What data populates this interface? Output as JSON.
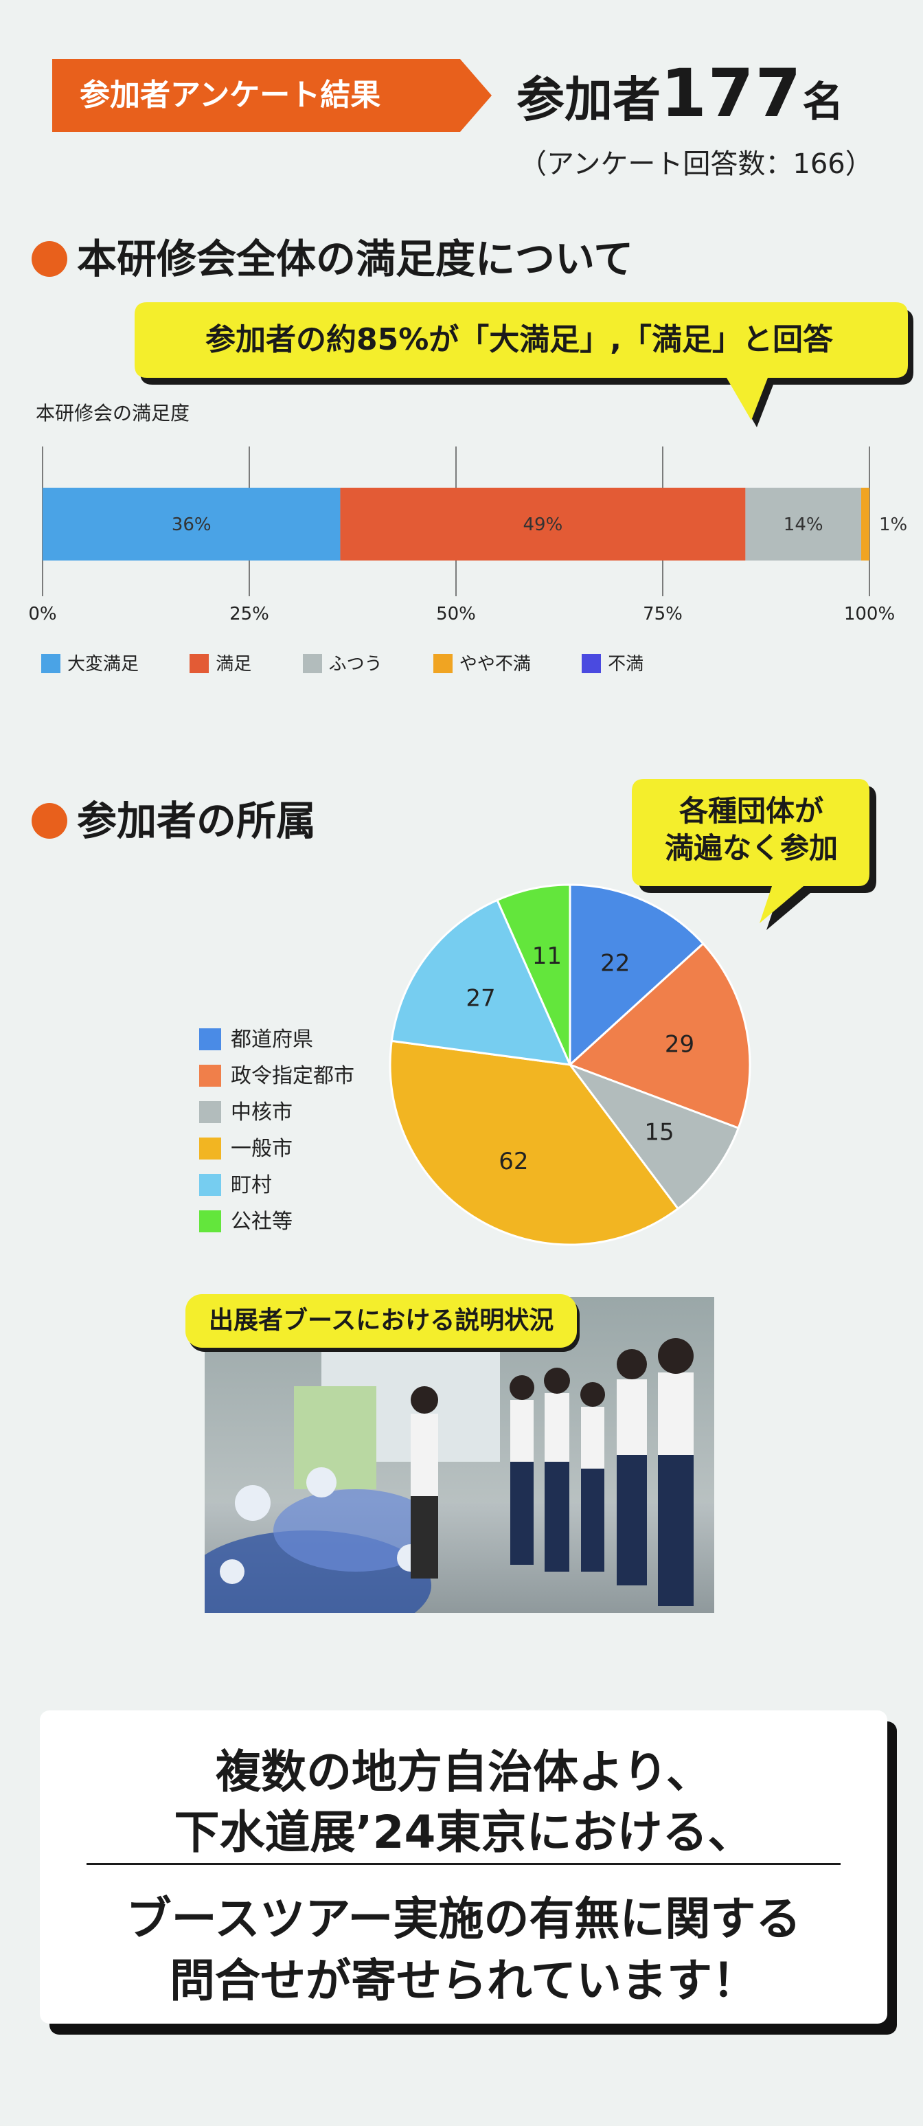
{
  "header": {
    "banner_label": "参加者アンケート結果",
    "participants_label": "参加者",
    "participants_count": "177",
    "participants_unit": "名",
    "responses_note": "（アンケート回答数：166）",
    "banner_color": "#e8601c"
  },
  "satisfaction": {
    "heading": "本研修会全体の満足度について",
    "callout": "参加者の約85%が「大満足」,「満足」と回答",
    "chart_title": "本研修会の満足度"
  },
  "affiliation": {
    "heading": "参加者の所属",
    "callout_line1": "各種団体が",
    "callout_line2": "満遍なく参加"
  },
  "photo": {
    "caption": "出展者ブースにおける説明状況"
  },
  "message": {
    "line1": "複数の地方自治体より、",
    "line2": "下水道展’24東京における、",
    "line3": "ブースツアー実施の有無に関する",
    "line4": "問合せが寄せられています！"
  },
  "chart_data": [
    {
      "type": "bar",
      "orientation": "horizontal-stacked",
      "title": "本研修会の満足度",
      "xlim": [
        0,
        100
      ],
      "xticks": [
        "0%",
        "25%",
        "50%",
        "75%",
        "100%"
      ],
      "grid": true,
      "legend_position": "bottom",
      "series": [
        {
          "name": "大変満足",
          "value": 36,
          "label": "36%",
          "color": "#4aa3e6"
        },
        {
          "name": "満足",
          "value": 49,
          "label": "49%",
          "color": "#e35b35"
        },
        {
          "name": "ふつう",
          "value": 14,
          "label": "14%",
          "color": "#b2bcbc"
        },
        {
          "name": "やや不満",
          "value": 1,
          "label": "1%",
          "color": "#f0a422"
        },
        {
          "name": "不満",
          "value": 0,
          "label": "",
          "color": "#4a4ae0"
        }
      ]
    },
    {
      "type": "pie",
      "legend_position": "left",
      "series": [
        {
          "name": "都道府県",
          "value": 22,
          "label": "22",
          "color": "#4a8be6"
        },
        {
          "name": "政令指定都市",
          "value": 29,
          "label": "29",
          "color": "#f07f4a"
        },
        {
          "name": "中核市",
          "value": 15,
          "label": "15",
          "color": "#b2bcbc"
        },
        {
          "name": "一般市",
          "value": 62,
          "label": "62",
          "color": "#f2b522"
        },
        {
          "name": "町村",
          "value": 27,
          "label": "27",
          "color": "#76cdf0"
        },
        {
          "name": "公社等",
          "value": 11,
          "label": "11",
          "color": "#63e63c"
        }
      ]
    }
  ]
}
